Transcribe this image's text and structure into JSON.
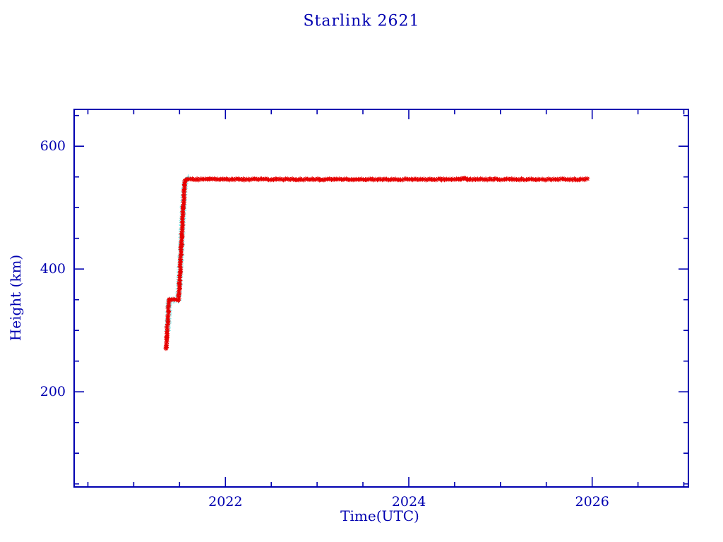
{
  "page": {
    "background_color": "#ffffff"
  },
  "chart_data": {
    "type": "scatter",
    "title": "Starlink 2621",
    "xlabel": "Time(UTC)",
    "ylabel": "Height (km)",
    "xlim": [
      2020.35,
      2027.05
    ],
    "ylim": [
      45,
      660
    ],
    "xticks": [
      2022,
      2024,
      2026
    ],
    "xtick_labels": [
      "2022",
      "2024",
      "2026"
    ],
    "yticks": [
      200,
      400,
      600
    ],
    "ytick_labels": [
      "200",
      "400",
      "600"
    ],
    "x_minor_step": 0.5,
    "y_minor_step": 50,
    "grid": false,
    "legend": null,
    "axis_color": "#0000b0",
    "text_color": "#0000b0",
    "series": [
      {
        "name": "height-cyan-overlay",
        "color": "#76e7e7",
        "marker": "plus",
        "marker_size": 4,
        "points": [
          [
            2021.37,
            300
          ],
          [
            2021.385,
            345
          ],
          [
            2021.39,
            350
          ],
          [
            2021.487,
            350
          ],
          [
            2021.5,
            380
          ],
          [
            2021.52,
            440
          ],
          [
            2021.54,
            500
          ],
          [
            2021.56,
            543
          ],
          [
            2021.6,
            548
          ]
        ]
      },
      {
        "name": "height-red-observed",
        "color": "#e60000",
        "marker": "asterisk",
        "marker_size": 3,
        "points": [
          [
            2021.35,
            271
          ],
          [
            2021.355,
            273
          ],
          [
            2021.36,
            290
          ],
          [
            2021.37,
            315
          ],
          [
            2021.38,
            338
          ],
          [
            2021.385,
            347
          ],
          [
            2021.39,
            350
          ],
          [
            2021.487,
            350
          ],
          [
            2021.5,
            375
          ],
          [
            2021.52,
            440
          ],
          [
            2021.54,
            500
          ],
          [
            2021.56,
            544
          ],
          [
            2021.58,
            546
          ],
          [
            2024.56,
            546
          ],
          [
            2024.6,
            548
          ],
          [
            2024.64,
            546
          ],
          [
            2025.95,
            546
          ]
        ]
      }
    ]
  }
}
